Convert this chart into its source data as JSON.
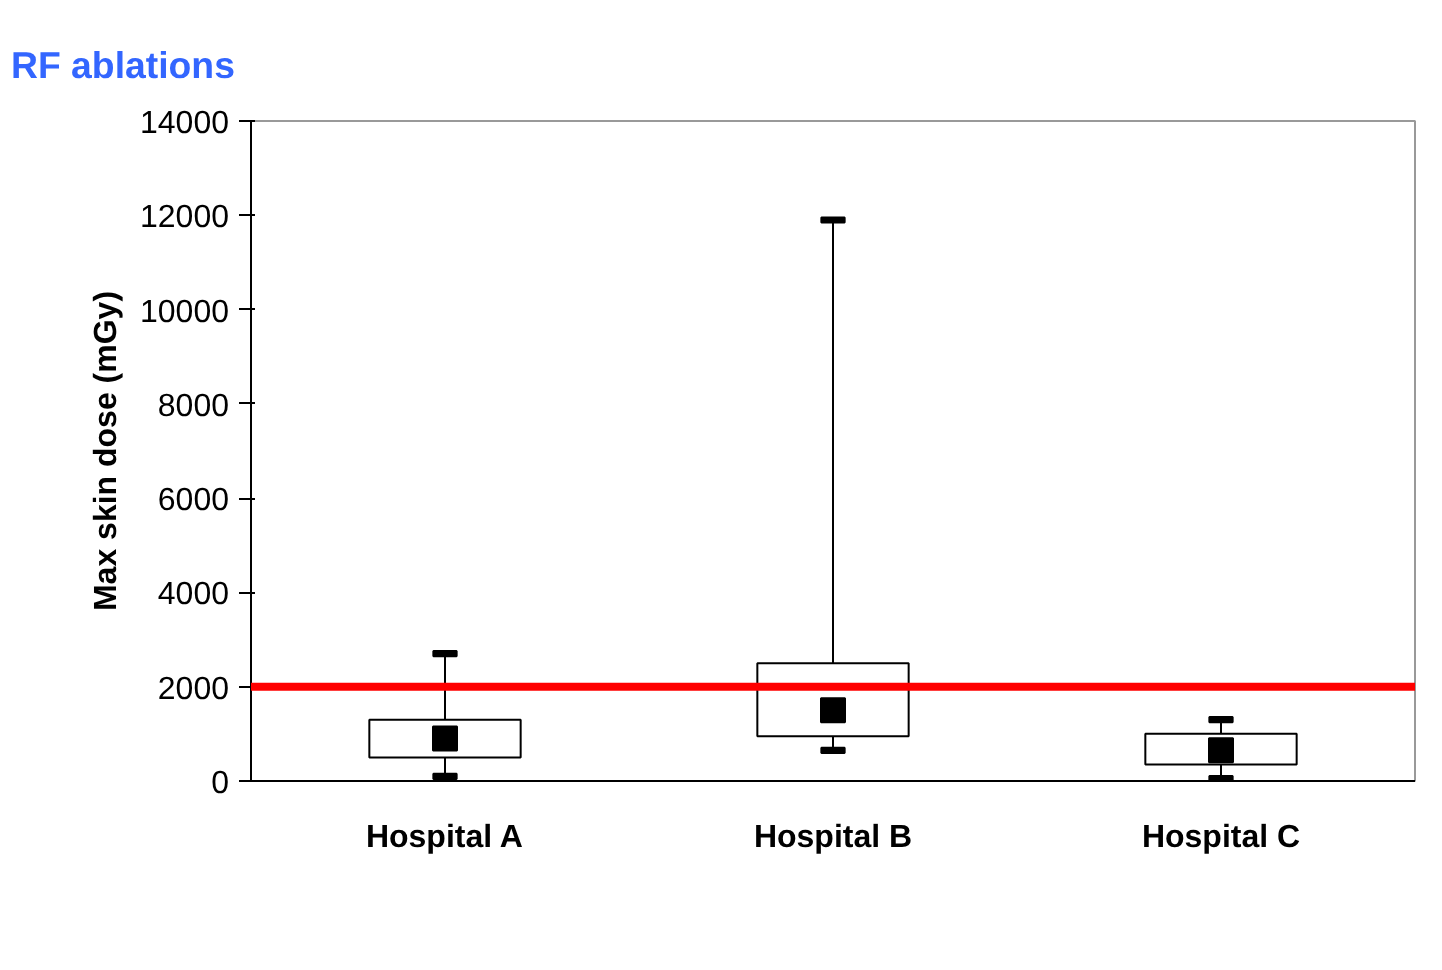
{
  "chart_data": {
    "type": "box",
    "title": "RF ablations",
    "ylabel": "Max skin dose (mGy)",
    "categories": [
      "Hospital A",
      "Hospital B",
      "Hospital C"
    ],
    "boxes": [
      {
        "low": 100,
        "q1": 500,
        "median": 900,
        "q3": 1300,
        "high": 2700
      },
      {
        "low": 650,
        "q1": 950,
        "median": 1500,
        "q3": 2500,
        "high": 11900
      },
      {
        "low": 50,
        "q1": 350,
        "median": 650,
        "q3": 1000,
        "high": 1300
      }
    ],
    "ylim": [
      0,
      14000
    ],
    "yticks": [
      0,
      2000,
      4000,
      6000,
      8000,
      10000,
      12000,
      14000
    ],
    "ref_lines": [
      {
        "axis": "y",
        "value": 2000,
        "color": "#ff0000"
      }
    ],
    "grid": false,
    "marker": "square"
  }
}
